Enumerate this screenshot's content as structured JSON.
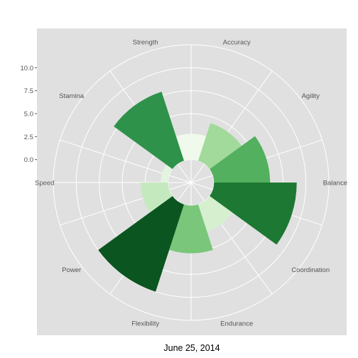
{
  "chart_data": {
    "type": "bar",
    "coord": "polar",
    "categories": [
      "Accuracy",
      "Agility",
      "Balance",
      "Coordination",
      "Endurance",
      "Flexibility",
      "Power",
      "Speed",
      "Stamina",
      "Strength"
    ],
    "values": [
      2.8,
      4.3,
      6.1,
      9.0,
      3.1,
      5.2,
      10.0,
      3.0,
      0.8,
      7.9
    ],
    "colors": [
      "#f0faec",
      "#a1da9a",
      "#53b05e",
      "#1c7832",
      "#d5efcf",
      "#7ac67a",
      "#0b5520",
      "#c5e9bf",
      "#e4f4df",
      "#2e924a"
    ],
    "yticks": [
      0.0,
      2.5,
      5.0,
      7.5,
      10.0
    ],
    "ytick_labels": [
      "0.0",
      "2.5",
      "5.0",
      "7.5",
      "10.0"
    ],
    "ylim": [
      -2.5,
      12.5
    ],
    "xlabel": "June 25, 2014",
    "ylabel": "",
    "grid": true,
    "panel_background": "#e0e0e0",
    "grid_color": "#ffffff",
    "legend": "none"
  }
}
